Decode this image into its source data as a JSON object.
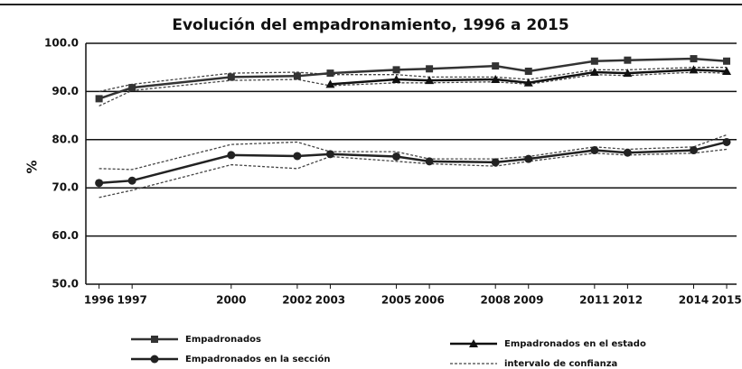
{
  "chart_data": {
    "type": "line",
    "title": "Evolución del empadronamiento, 1996 a 2015",
    "y_label": "%",
    "x": [
      1996,
      1997,
      2000,
      2002,
      2003,
      2005,
      2006,
      2008,
      2009,
      2011,
      2012,
      2014,
      2015
    ],
    "xlim": [
      1995.6,
      2015.3
    ],
    "xticks": [
      1996,
      1997,
      2000,
      2002,
      2003,
      2005,
      2006,
      2008,
      2009,
      2011,
      2012,
      2014,
      2015
    ],
    "ylim": [
      50,
      100
    ],
    "yticks": [
      {
        "value": 50,
        "label": "50.0"
      },
      {
        "value": 60,
        "label": "60.0"
      },
      {
        "value": 70,
        "label": "70.0"
      },
      {
        "value": 80,
        "label": "80.0"
      },
      {
        "value": 90,
        "label": "90.0"
      },
      {
        "value": 100,
        "label": "100.0"
      }
    ],
    "grid": true,
    "series": [
      {
        "name": "Empadronados",
        "color": "#333333",
        "marker": "square",
        "values": [
          88.5,
          90.8,
          93,
          93.2,
          93.8,
          94.5,
          94.7,
          95.3,
          94.2,
          96.3,
          96.5,
          96.8,
          96.3
        ]
      },
      {
        "name": "Empadronados en el estado",
        "color": "#111111",
        "marker": "triangle",
        "values": [
          null,
          null,
          null,
          null,
          91.5,
          92.5,
          92.3,
          92.5,
          91.8,
          94,
          93.8,
          94.5,
          94.2
        ]
      },
      {
        "name": "Empadronados en la sección",
        "color": "#222222",
        "marker": "circle",
        "values": [
          71,
          71.5,
          76.8,
          76.6,
          77,
          76.5,
          75.5,
          75.3,
          76,
          77.8,
          77.3,
          77.8,
          79.5
        ]
      }
    ],
    "interval": {
      "name": "intervalo de confianza",
      "color": "#444444",
      "bands": [
        {
          "upper": [
            90,
            91.5,
            93.8,
            94,
            93.5,
            93.5,
            93,
            93,
            92.5,
            94.5,
            94.5,
            95,
            95
          ],
          "lower": [
            87,
            90.2,
            92.3,
            92.5,
            91.2,
            91.8,
            91.8,
            92,
            91.5,
            93.5,
            93.3,
            94,
            93.8
          ]
        },
        {
          "upper": [
            74,
            73.8,
            79,
            79.5,
            77.5,
            77.5,
            76,
            76,
            76.5,
            78.5,
            78,
            78.5,
            81
          ],
          "lower": [
            68,
            69.5,
            74.8,
            74,
            76.5,
            75.5,
            75,
            74.5,
            75.5,
            77.2,
            76.8,
            77.2,
            78
          ]
        }
      ]
    }
  }
}
